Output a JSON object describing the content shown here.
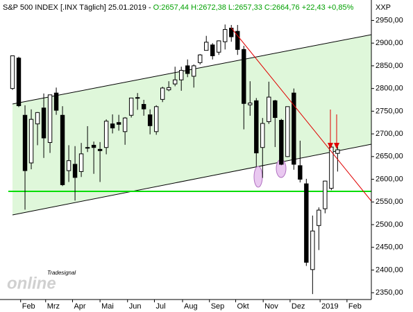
{
  "chart_data": {
    "type": "candlestick",
    "title": "S&P 500 INDEX [.INX  Täglich] 25.01.2019 - ",
    "quote": "O:2657,44 H:2672,38 L:2657,33 C:2664,76 +22,43 +0,85%",
    "quote_color": "#00a000",
    "axis_unit": "XXP",
    "watermark": [
      "Tradesignal",
      "online"
    ],
    "up_color": "#ffffff",
    "down_color": "#000000",
    "open": [
      2800,
      2867,
      2741,
      2636,
      2722,
      2757,
      2681,
      2790,
      2741,
      2619,
      2633,
      2617,
      2670,
      2675,
      2666,
      2670,
      2722,
      2725,
      2705,
      2741,
      2780,
      2765,
      2742,
      2705,
      2776,
      2797,
      2810,
      2819,
      2850,
      2827,
      2857,
      2884,
      2896,
      2880,
      2903,
      2933,
      2926,
      2886,
      2764,
      2773,
      2670,
      2727,
      2773,
      2730,
      2650,
      2790,
      2630,
      2590,
      2401,
      2498,
      2535,
      2580,
      2657
    ],
    "high": [
      2872,
      2870,
      2763,
      2754,
      2748,
      2789,
      2786,
      2802,
      2761,
      2675,
      2673,
      2680,
      2717,
      2683,
      2682,
      2732,
      2743,
      2742,
      2737,
      2779,
      2790,
      2775,
      2754,
      2763,
      2804,
      2816,
      2848,
      2848,
      2864,
      2853,
      2876,
      2916,
      2900,
      2906,
      2941,
      2940,
      2940,
      2894,
      2816,
      2779,
      2735,
      2815,
      2775,
      2733,
      2760,
      2800,
      2685,
      2601,
      2520,
      2538,
      2597,
      2675,
      2672
    ],
    "low": [
      2797,
      2759,
      2533,
      2622,
      2675,
      2647,
      2658,
      2742,
      2585,
      2594,
      2553,
      2605,
      2660,
      2612,
      2594,
      2655,
      2701,
      2707,
      2676,
      2736,
      2753,
      2740,
      2699,
      2698,
      2770,
      2794,
      2805,
      2795,
      2825,
      2802,
      2853,
      2884,
      2864,
      2874,
      2886,
      2903,
      2874,
      2710,
      2740,
      2628,
      2603,
      2722,
      2671,
      2631,
      2649,
      2621,
      2593,
      2409,
      2347,
      2444,
      2525,
      2576,
      2617
    ],
    "close": [
      2872,
      2762,
      2619,
      2732,
      2747,
      2691,
      2786,
      2752,
      2588,
      2641,
      2604,
      2656,
      2670,
      2670,
      2663,
      2728,
      2713,
      2721,
      2735,
      2779,
      2780,
      2755,
      2718,
      2760,
      2801,
      2802,
      2819,
      2840,
      2833,
      2850,
      2874,
      2902,
      2872,
      2905,
      2930,
      2914,
      2886,
      2767,
      2768,
      2658,
      2723,
      2781,
      2736,
      2633,
      2760,
      2633,
      2600,
      2417,
      2486,
      2532,
      2596,
      2671,
      2665
    ],
    "xlim": [
      -2,
      57.4
    ],
    "xticks": [
      {
        "value": 1.3,
        "label": "Feb"
      },
      {
        "value": 5.3,
        "label": "Mrz"
      },
      {
        "value": 9.6,
        "label": "Apr"
      },
      {
        "value": 14,
        "label": "Mai"
      },
      {
        "value": 18.4,
        "label": "Jun"
      },
      {
        "value": 22.7,
        "label": "Jul"
      },
      {
        "value": 27.2,
        "label": "Aug"
      },
      {
        "value": 31.5,
        "label": "Sep"
      },
      {
        "value": 35.7,
        "label": "Okt"
      },
      {
        "value": 40.1,
        "label": "Nov"
      },
      {
        "value": 44.4,
        "label": "Dez"
      },
      {
        "value": 49.2,
        "label": "2019"
      },
      {
        "value": 53.5,
        "label": "Feb"
      }
    ],
    "ylim": [
      2335,
      2995
    ],
    "yticks": [
      {
        "value": 2350,
        "label": "2350,00"
      },
      {
        "value": 2400,
        "label": "2400,00"
      },
      {
        "value": 2450,
        "label": "2450,00"
      },
      {
        "value": 2500,
        "label": "2500,00"
      },
      {
        "value": 2550,
        "label": "2550,00"
      },
      {
        "value": 2600,
        "label": "2600,00"
      },
      {
        "value": 2650,
        "label": "2650,00"
      },
      {
        "value": 2700,
        "label": "2700,00"
      },
      {
        "value": 2750,
        "label": "2750,00"
      },
      {
        "value": 2800,
        "label": "2800,00"
      },
      {
        "value": 2850,
        "label": "2850,00"
      },
      {
        "value": 2900,
        "label": "2900,00"
      },
      {
        "value": 2950,
        "label": "2950,00"
      }
    ]
  }
}
